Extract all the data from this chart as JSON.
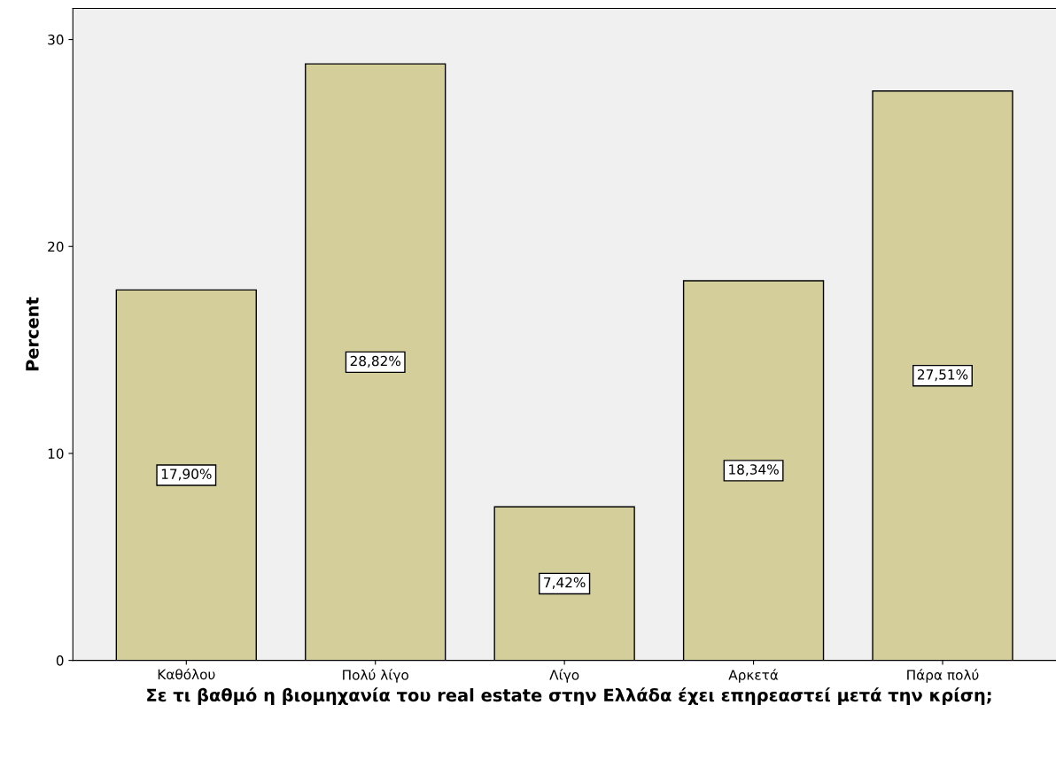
{
  "chart_data": {
    "type": "bar",
    "categories": [
      "Καθόλου",
      "Πολύ λίγο",
      "Λίγο",
      "Αρκετά",
      "Πάρα πολύ"
    ],
    "values": [
      17.9,
      28.82,
      7.42,
      18.34,
      27.51
    ],
    "value_labels": [
      "17,90%",
      "28,82%",
      "7,42%",
      "18,34%",
      "27,51%"
    ],
    "color": "#d3ce9a",
    "xlabel": "Σε τι βαθμό η βιομηχανία του real estate στην Ελλάδα έχει επηρεαστεί μετά την κρίση;",
    "ylabel": "Percent",
    "ylim": [
      0,
      31.5
    ],
    "yticks": [
      0,
      10,
      20,
      30
    ],
    "grid": false
  }
}
